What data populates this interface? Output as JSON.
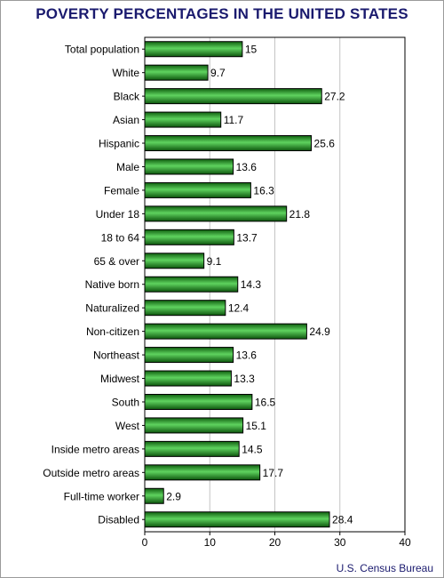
{
  "chart_data": {
    "type": "bar",
    "orientation": "horizontal",
    "title": "POVERTY PERCENTAGES IN THE UNITED STATES",
    "categories": [
      "Total population",
      "White",
      "Black",
      "Asian",
      "Hispanic",
      "Male",
      "Female",
      "Under 18",
      "18 to 64",
      "65 & over",
      "Native born",
      "Naturalized",
      "Non-citizen",
      "Northeast",
      "Midwest",
      "South",
      "West",
      "Inside metro areas",
      "Outside metro areas",
      "Full-time worker",
      "Disabled"
    ],
    "values": [
      15,
      9.7,
      27.2,
      11.7,
      25.6,
      13.6,
      16.3,
      21.8,
      13.7,
      9.1,
      14.3,
      12.4,
      24.9,
      13.6,
      13.3,
      16.5,
      15.1,
      14.5,
      17.7,
      2.9,
      28.4
    ],
    "value_labels": [
      "15",
      "9.7",
      "27.2",
      "11.7",
      "25.6",
      "13.6",
      "16.3",
      "21.8",
      "13.7",
      "9.1",
      "14.3",
      "12.4",
      "24.9",
      "13.6",
      "13.3",
      "16.5",
      "15.1",
      "14.5",
      "17.7",
      "2.9",
      "28.4"
    ],
    "xlim": [
      0,
      40
    ],
    "x_ticks": [
      0,
      10,
      20,
      30,
      40
    ],
    "grid": true,
    "bar_color": "#1e8a1e",
    "bar_highlight": "#5fd35f",
    "title_color": "#1a1a6e",
    "source": "U.S. Census Bureau"
  }
}
